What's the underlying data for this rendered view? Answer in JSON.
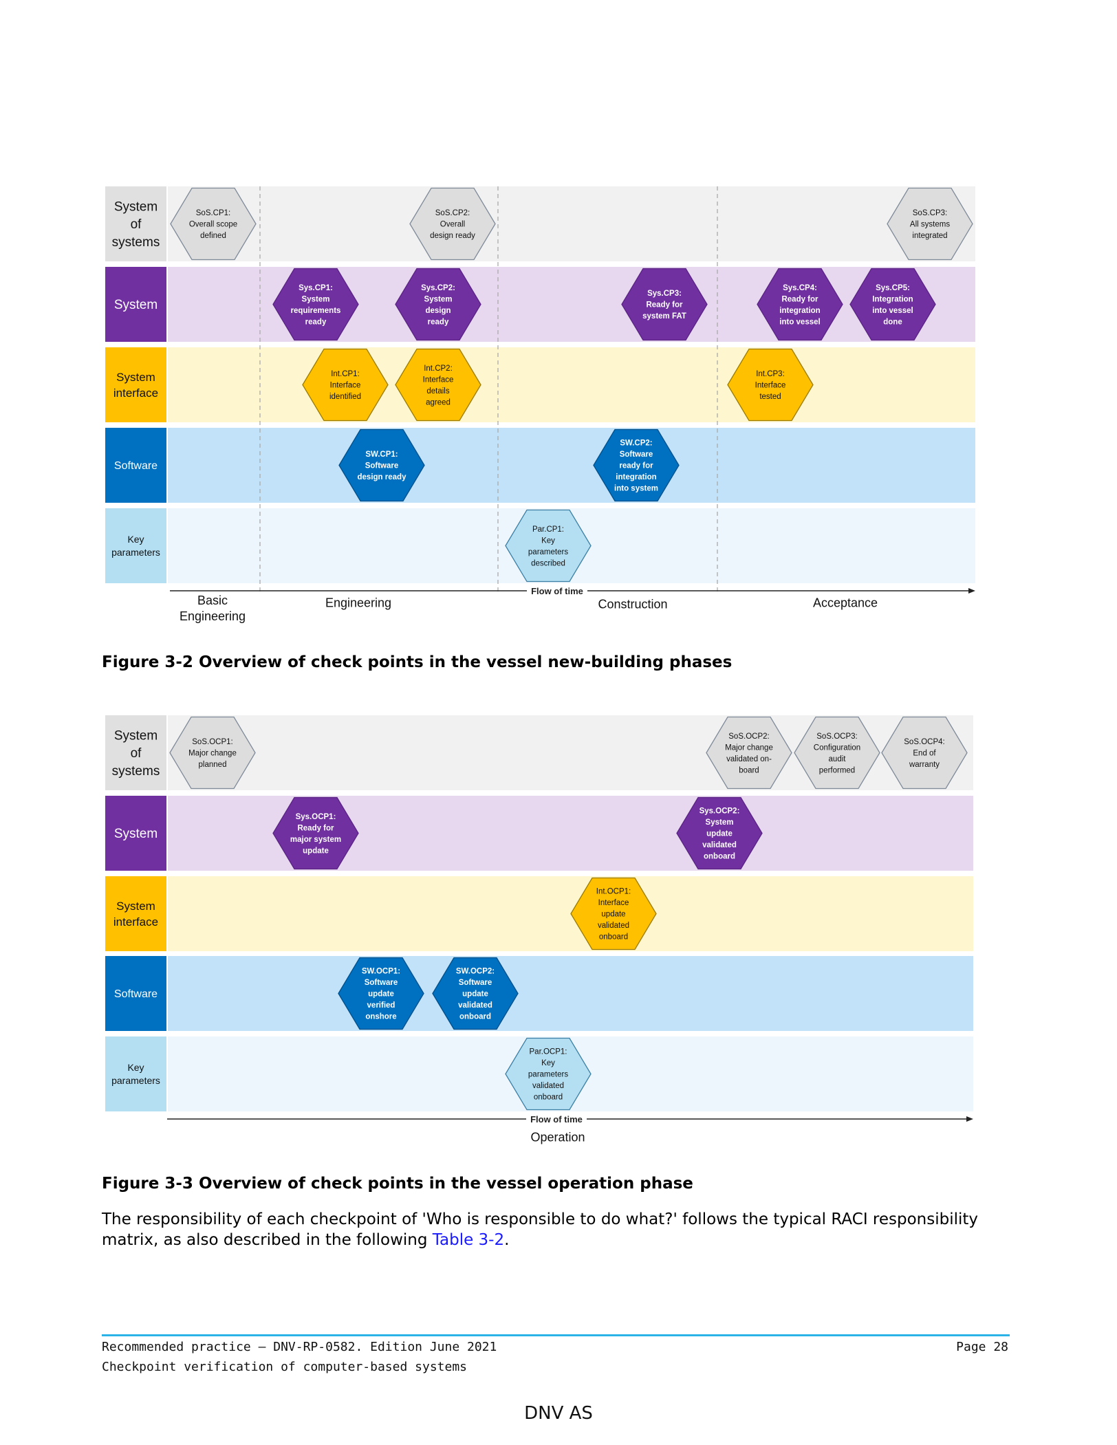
{
  "figure1": {
    "caption": "Figure 3-2 Overview of check points in the vessel new-building phases",
    "lanes": [
      {
        "label": [
          "System",
          "of",
          "systems"
        ]
      },
      {
        "label": [
          "System"
        ]
      },
      {
        "label": [
          "System",
          "interface"
        ]
      },
      {
        "label": [
          "Software"
        ]
      },
      {
        "label": [
          "Key",
          "parameters"
        ]
      }
    ],
    "flow_label": "Flow of time",
    "phases": [
      {
        "label": [
          "Basic",
          "Engineering"
        ]
      },
      {
        "label": [
          "Engineering"
        ]
      },
      {
        "label": [
          "Construction"
        ]
      },
      {
        "label": [
          "Acceptance"
        ]
      }
    ],
    "checkpoints": [
      {
        "lane": 0,
        "label": [
          "SoS.CP1:",
          "Overall scope",
          "defined"
        ]
      },
      {
        "lane": 0,
        "label": [
          "SoS.CP2:",
          "Overall",
          "design ready"
        ]
      },
      {
        "lane": 0,
        "label": [
          "SoS.CP3:",
          "All systems",
          "integrated"
        ]
      },
      {
        "lane": 1,
        "label": [
          "Sys.CP1:",
          "System",
          "requirements",
          "ready"
        ]
      },
      {
        "lane": 1,
        "label": [
          "Sys.CP2:",
          "System",
          "design",
          "ready"
        ]
      },
      {
        "lane": 1,
        "label": [
          "Sys.CP3:",
          "Ready for",
          "system FAT"
        ]
      },
      {
        "lane": 1,
        "label": [
          "Sys.CP4:",
          "Ready for",
          "integration",
          "into vessel"
        ]
      },
      {
        "lane": 1,
        "label": [
          "Sys.CP5:",
          "Integration",
          "into vessel",
          "done"
        ]
      },
      {
        "lane": 2,
        "label": [
          "Int.CP1:",
          "Interface",
          "identified"
        ]
      },
      {
        "lane": 2,
        "label": [
          "Int.CP2:",
          "Interface",
          "details",
          "agreed"
        ]
      },
      {
        "lane": 2,
        "label": [
          "Int.CP3:",
          "Interface",
          "tested"
        ]
      },
      {
        "lane": 3,
        "label": [
          "SW.CP1:",
          "Software",
          "design ready"
        ]
      },
      {
        "lane": 3,
        "label": [
          "SW.CP2:",
          "Software",
          "ready for",
          "integration",
          "into system"
        ]
      },
      {
        "lane": 4,
        "label": [
          "Par.CP1:",
          "Key",
          "parameters",
          "described"
        ]
      }
    ]
  },
  "figure2": {
    "caption": "Figure 3-3 Overview of check points in the vessel operation phase",
    "lanes": [
      {
        "label": [
          "System",
          "of",
          "systems"
        ]
      },
      {
        "label": [
          "System"
        ]
      },
      {
        "label": [
          "System",
          "interface"
        ]
      },
      {
        "label": [
          "Software"
        ]
      },
      {
        "label": [
          "Key",
          "parameters"
        ]
      }
    ],
    "flow_label": "Flow of time",
    "phases": [
      {
        "label": [
          "Operation"
        ]
      }
    ],
    "checkpoints": [
      {
        "lane": 0,
        "label": [
          "SoS.OCP1:",
          "Major change",
          "planned"
        ]
      },
      {
        "lane": 0,
        "label": [
          "SoS.OCP2:",
          "Major change",
          "validated on-",
          "board"
        ]
      },
      {
        "lane": 0,
        "label": [
          "SoS.OCP3:",
          "Configuration",
          "audit",
          "performed"
        ]
      },
      {
        "lane": 0,
        "label": [
          "SoS.OCP4:",
          "End of",
          "warranty"
        ]
      },
      {
        "lane": 1,
        "label": [
          "Sys.OCP1:",
          "Ready for",
          "major system",
          "update"
        ]
      },
      {
        "lane": 1,
        "label": [
          "Sys.OCP2:",
          "System",
          "update",
          "validated",
          "onboard"
        ]
      },
      {
        "lane": 2,
        "label": [
          "Int.OCP1:",
          "Interface",
          "update",
          "validated",
          "onboard"
        ]
      },
      {
        "lane": 3,
        "label": [
          "SW.OCP1:",
          "Software",
          "update",
          "verified",
          "onshore"
        ]
      },
      {
        "lane": 3,
        "label": [
          "SW.OCP2:",
          "Software",
          "update",
          "validated",
          "onboard"
        ]
      },
      {
        "lane": 4,
        "label": [
          "Par.OCP1:",
          "Key",
          "parameters",
          "validated",
          "onboard"
        ]
      }
    ]
  },
  "paragraph": {
    "text": "The responsibility of each checkpoint of 'Who is responsible to do what?' follows the typical RACI responsibility matrix, as also described in the following ",
    "link": "Table 3-2",
    "end": "."
  },
  "footer": {
    "line1": "Recommended practice — DNV-RP-0582. Edition June 2021",
    "line2": "Checkpoint verification of computer-based systems",
    "page": "Page 28",
    "company": "DNV AS"
  },
  "colors": {
    "sos_lane": "#f1f1f1",
    "sos_label": "#e0e0e0",
    "sos_hex": "#dddddd",
    "sys_lane": "#e7d8f0",
    "sys_label": "#7030a0",
    "sys_hex": "#7030a0",
    "int_lane": "#fef6cf",
    "int_label": "#ffc000",
    "int_hex": "#ffc000",
    "sw_lane": "#c2e2fa",
    "sw_label": "#0070c0",
    "sw_hex": "#0070c0",
    "key_lane": "#edf6fc",
    "key_label": "#b4def1",
    "key_hex": "#b4def1",
    "link": "#1a1aff",
    "footer_rule": "#2bb2e6"
  }
}
